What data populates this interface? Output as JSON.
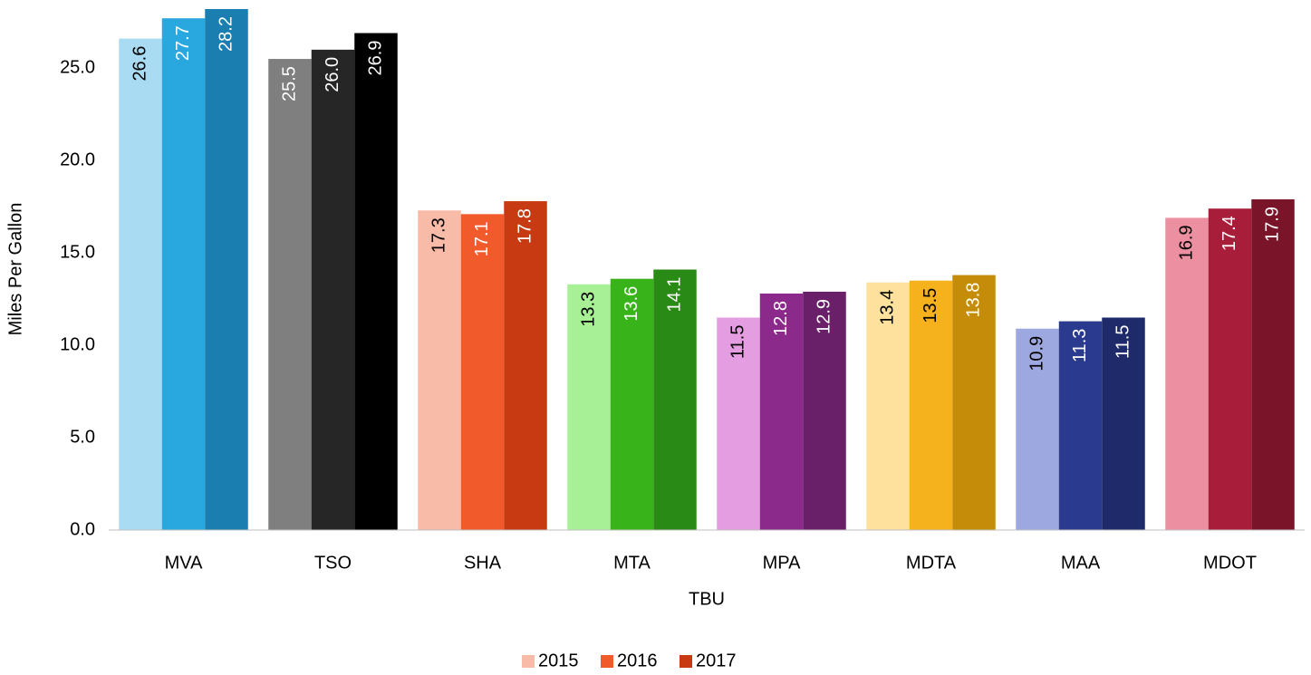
{
  "chart_data": {
    "type": "bar",
    "y_label": "Miles Per Gallon",
    "x_label": "TBU",
    "categories": [
      "MVA",
      "TSO",
      "SHA",
      "MTA",
      "MPA",
      "MDTA",
      "MAA",
      "MDOT"
    ],
    "series": [
      {
        "name": "2015",
        "color": "#f8bba8",
        "colors": [
          "#a9dbf2",
          "#7f7f7f",
          "#f8bba8",
          "#a8f095",
          "#e39de0",
          "#fde19c",
          "#9da7e0",
          "#ec8fa0"
        ],
        "values": [
          26.6,
          25.5,
          17.3,
          13.3,
          11.5,
          13.4,
          10.9,
          16.9
        ],
        "value_labels": [
          "26.6",
          "25.5",
          "17.3",
          "13.3",
          "11.5",
          "13.4",
          "10.9",
          "16.9"
        ]
      },
      {
        "name": "2016",
        "color": "#f15a2b",
        "colors": [
          "#29a8e0",
          "#262626",
          "#f15a2b",
          "#38b41a",
          "#8b2a8b",
          "#f5b21d",
          "#2a3a8e",
          "#a81d3a"
        ],
        "values": [
          27.7,
          26,
          17.1,
          13.6,
          12.8,
          13.5,
          11.3,
          17.4
        ],
        "value_labels": [
          "27.7",
          "26.0",
          "17.1",
          "13.6",
          "12.8",
          "13.5",
          "11.3",
          "17.4"
        ]
      },
      {
        "name": "2017",
        "color": "#c83b12",
        "colors": [
          "#1a7fb0",
          "#000000",
          "#c83b12",
          "#2a8a16",
          "#6a1f69",
          "#c58c0a",
          "#1e2a6a",
          "#7a1529"
        ],
        "values": [
          28.2,
          26.9,
          17.8,
          14.1,
          12.9,
          13.8,
          11.5,
          17.9
        ],
        "value_labels": [
          "28.2",
          "26.9",
          "17.8",
          "14.1",
          "12.9",
          "13.8",
          "11.5",
          "17.9"
        ]
      }
    ],
    "ylim": [
      0,
      28.2
    ],
    "yticks": [
      {
        "value": 0,
        "label": "0.0"
      },
      {
        "value": 5,
        "label": "5.0"
      },
      {
        "value": 10,
        "label": "10.0"
      },
      {
        "value": 15,
        "label": "15.0"
      },
      {
        "value": 20,
        "label": "20.0"
      },
      {
        "value": 25,
        "label": "25.0"
      }
    ],
    "grid": false,
    "legend": "bottom"
  }
}
